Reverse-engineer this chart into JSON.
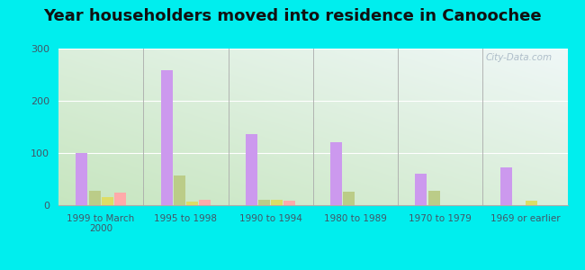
{
  "title": "Year householders moved into residence in Canoochee",
  "categories": [
    "1999 to March\n2000",
    "1995 to 1998",
    "1990 to 1994",
    "1980 to 1989",
    "1970 to 1979",
    "1969 or earlier"
  ],
  "series": {
    "White Non-Hispanic": [
      100,
      258,
      137,
      120,
      60,
      72
    ],
    "Black": [
      27,
      57,
      10,
      26,
      28,
      0
    ],
    "Other Race": [
      16,
      7,
      10,
      0,
      0,
      8
    ],
    "Hispanic or Latino": [
      25,
      11,
      9,
      0,
      0,
      0
    ]
  },
  "colors": {
    "White Non-Hispanic": "#cc99ee",
    "Black": "#bbcc88",
    "Other Race": "#dddd66",
    "Hispanic or Latino": "#ffaaaa"
  },
  "ylim": [
    0,
    300
  ],
  "yticks": [
    0,
    100,
    200,
    300
  ],
  "outer_bg": "#00eeee",
  "watermark": "City-Data.com",
  "bar_width": 0.15,
  "title_fontsize": 13
}
